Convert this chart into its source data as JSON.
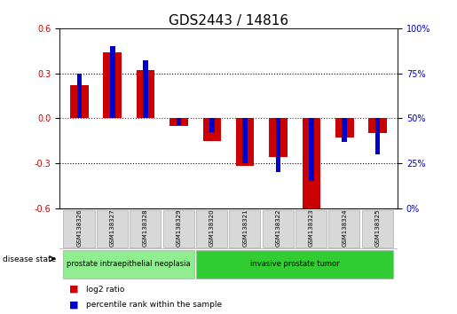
{
  "title": "GDS2443 / 14816",
  "samples": [
    "GSM138326",
    "GSM138327",
    "GSM138328",
    "GSM138329",
    "GSM138320",
    "GSM138321",
    "GSM138322",
    "GSM138323",
    "GSM138324",
    "GSM138325"
  ],
  "log2_ratio": [
    0.22,
    0.44,
    0.32,
    -0.05,
    -0.15,
    -0.32,
    -0.26,
    -0.6,
    -0.13,
    -0.1
  ],
  "percentile_rank_pct": [
    75,
    90,
    82,
    46,
    42,
    25,
    20,
    15,
    37,
    30
  ],
  "ylim_left": [
    -0.6,
    0.6
  ],
  "ylim_right": [
    0,
    100
  ],
  "yticks_left": [
    -0.6,
    -0.3,
    0.0,
    0.3,
    0.6
  ],
  "yticks_right": [
    0,
    25,
    50,
    75,
    100
  ],
  "bar_color_red": "#cc0000",
  "bar_color_blue": "#0000cc",
  "red_bar_width": 0.55,
  "blue_bar_width": 0.15,
  "groups": [
    {
      "label": "prostate intraepithelial neoplasia",
      "indices": [
        0,
        1,
        2,
        3
      ],
      "color": "#90ee90"
    },
    {
      "label": "invasive prostate tumor",
      "indices": [
        4,
        5,
        6,
        7,
        8,
        9
      ],
      "color": "#32cd32"
    }
  ],
  "disease_state_label": "disease state",
  "legend_red": "log2 ratio",
  "legend_blue": "percentile rank within the sample",
  "zero_line_color": "#cc0000",
  "title_fontsize": 11,
  "tick_fontsize": 7,
  "sample_fontsize": 5,
  "group_fontsize": 6,
  "legend_fontsize": 6.5
}
